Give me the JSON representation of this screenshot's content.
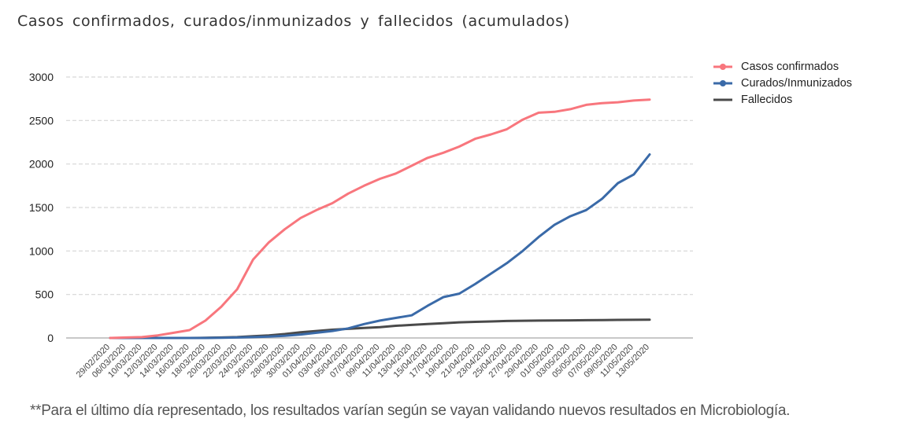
{
  "chart_data": {
    "type": "line",
    "title": "Casos confirmados, curados/inmunizados y fallecidos (acumulados)",
    "xlabel": "",
    "ylabel": "",
    "ylim": [
      0,
      3000
    ],
    "yticks": [
      0,
      500,
      1000,
      1500,
      2000,
      2500,
      3000
    ],
    "grid": "horizontal dashed",
    "legend_position": "right-top",
    "categories": [
      "29/02/2020",
      "06/03/2020",
      "10/03/2020",
      "12/03/2020",
      "14/03/2020",
      "16/03/2020",
      "18/03/2020",
      "20/03/2020",
      "22/03/2020",
      "24/03/2020",
      "26/03/2020",
      "28/03/2020",
      "30/03/2020",
      "01/04/2020",
      "03/04/2020",
      "05/04/2020",
      "07/04/2020",
      "09/04/2020",
      "11/04/2020",
      "13/04/2020",
      "15/04/2020",
      "17/04/2020",
      "19/04/2020",
      "21/04/2020",
      "23/04/2020",
      "25/04/2020",
      "27/04/2020",
      "29/04/2020",
      "01/05/2020",
      "03/05/2020",
      "05/05/2020",
      "07/05/2020",
      "09/05/2020",
      "11/05/2020",
      "13/05/2020"
    ],
    "series": [
      {
        "name": "Casos confirmados",
        "color": "#f8767d",
        "values": [
          0,
          5,
          10,
          30,
          60,
          90,
          200,
          360,
          560,
          900,
          1100,
          1250,
          1380,
          1470,
          1550,
          1660,
          1750,
          1830,
          1890,
          1980,
          2070,
          2130,
          2200,
          2290,
          2340,
          2400,
          2510,
          2590,
          2600,
          2630,
          2680,
          2700,
          2710,
          2730,
          2740
        ]
      },
      {
        "name": "Curados/Inmunizados",
        "color": "#3a6aa8",
        "values": [
          0,
          0,
          0,
          0,
          0,
          0,
          0,
          2,
          5,
          10,
          15,
          25,
          40,
          60,
          80,
          110,
          160,
          200,
          230,
          260,
          370,
          470,
          510,
          620,
          740,
          860,
          1000,
          1160,
          1300,
          1400,
          1470,
          1600,
          1780,
          1880,
          2110
        ]
      },
      {
        "name": "Fallecidos",
        "color": "#4a4a4a",
        "values": [
          0,
          0,
          0,
          0,
          0,
          0,
          2,
          5,
          10,
          20,
          30,
          45,
          65,
          80,
          95,
          105,
          115,
          125,
          140,
          150,
          160,
          170,
          180,
          185,
          190,
          195,
          198,
          200,
          201,
          202,
          204,
          206,
          208,
          209,
          210
        ]
      }
    ]
  },
  "legend": {
    "items": [
      {
        "label": "Casos confirmados",
        "color": "#f8767d"
      },
      {
        "label": "Curados/Inmunizados",
        "color": "#3a6aa8"
      },
      {
        "label": "Fallecidos",
        "color": "#4a4a4a"
      }
    ]
  },
  "footnote": "**Para el último día representado, los resultados varían según se vayan validando nuevos resultados en Microbiología."
}
